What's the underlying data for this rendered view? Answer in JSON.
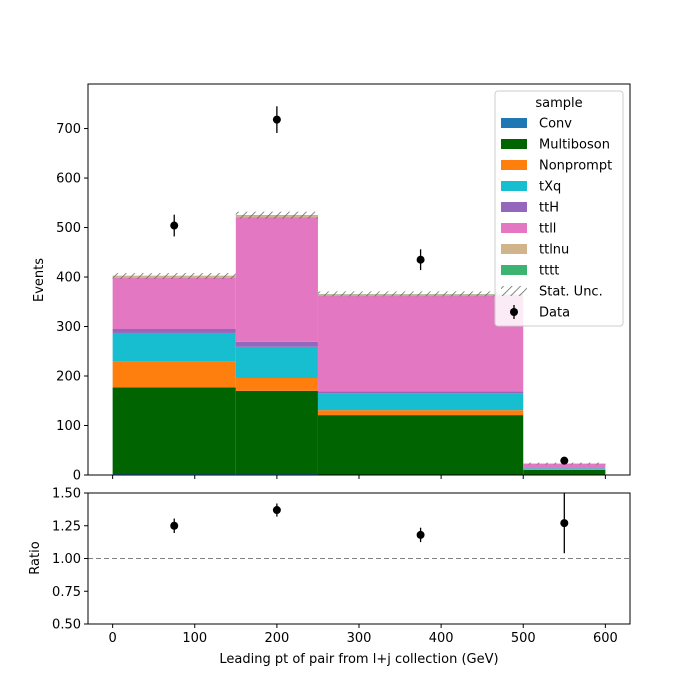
{
  "chart_data": {
    "type": "bar",
    "subtype": "stacked-histogram-with-ratio",
    "x_axis": {
      "label": "Leading pt of pair from l+j collection (GeV)",
      "xlim": [
        -30,
        630
      ],
      "ticks": [
        0,
        100,
        200,
        300,
        400,
        500,
        600
      ]
    },
    "main_panel": {
      "ylabel": "Events",
      "ylim": [
        0,
        790
      ],
      "yticks": [
        0,
        100,
        200,
        300,
        400,
        500,
        600,
        700
      ],
      "bin_edges": [
        0,
        150,
        250,
        500,
        600
      ],
      "series": [
        {
          "name": "Conv",
          "color": "#1f77b4",
          "values": [
            2,
            2,
            1,
            0.3
          ]
        },
        {
          "name": "Multiboson",
          "color": "#006400",
          "values": [
            175,
            168,
            120,
            10
          ]
        },
        {
          "name": "Nonprompt",
          "color": "#ff7f0e",
          "values": [
            52,
            26,
            10,
            1
          ]
        },
        {
          "name": "tXq",
          "color": "#17becf",
          "values": [
            58,
            63,
            34,
            2
          ]
        },
        {
          "name": "ttH",
          "color": "#9467bd",
          "values": [
            8,
            10,
            4,
            0.5
          ]
        },
        {
          "name": "ttll",
          "color": "#e377c2",
          "values": [
            103,
            252,
            194,
            9
          ]
        },
        {
          "name": "ttlnu",
          "color": "#d2b48c",
          "values": [
            4,
            3,
            2,
            0.2
          ]
        },
        {
          "name": "tttt",
          "color": "#3cb371",
          "values": [
            0.5,
            1,
            0.5,
            0.3
          ]
        }
      ],
      "stat_unc": {
        "name": "Stat. Unc.",
        "totals": [
          402,
          525,
          366,
          23
        ],
        "errors": [
          6,
          7,
          5,
          2
        ]
      },
      "data": {
        "name": "Data",
        "x": [
          75,
          200,
          375,
          550
        ],
        "y": [
          504,
          718,
          435,
          29
        ],
        "yerr": [
          22,
          27,
          21,
          5.4
        ]
      },
      "legend": {
        "title": "sample",
        "position": "top-right"
      }
    },
    "ratio_panel": {
      "ylabel": "Ratio",
      "ylim": [
        0.5,
        1.5
      ],
      "yticks": [
        0.5,
        0.75,
        1.0,
        1.25,
        1.5
      ],
      "ytick_labels": [
        "0.50",
        "0.75",
        "1.00",
        "1.25",
        "1.50"
      ],
      "reference_line": 1.0,
      "x": [
        75,
        200,
        375,
        550
      ],
      "y": [
        1.25,
        1.37,
        1.18,
        1.27
      ],
      "yerr": [
        0.055,
        0.05,
        0.055,
        0.23
      ]
    }
  }
}
